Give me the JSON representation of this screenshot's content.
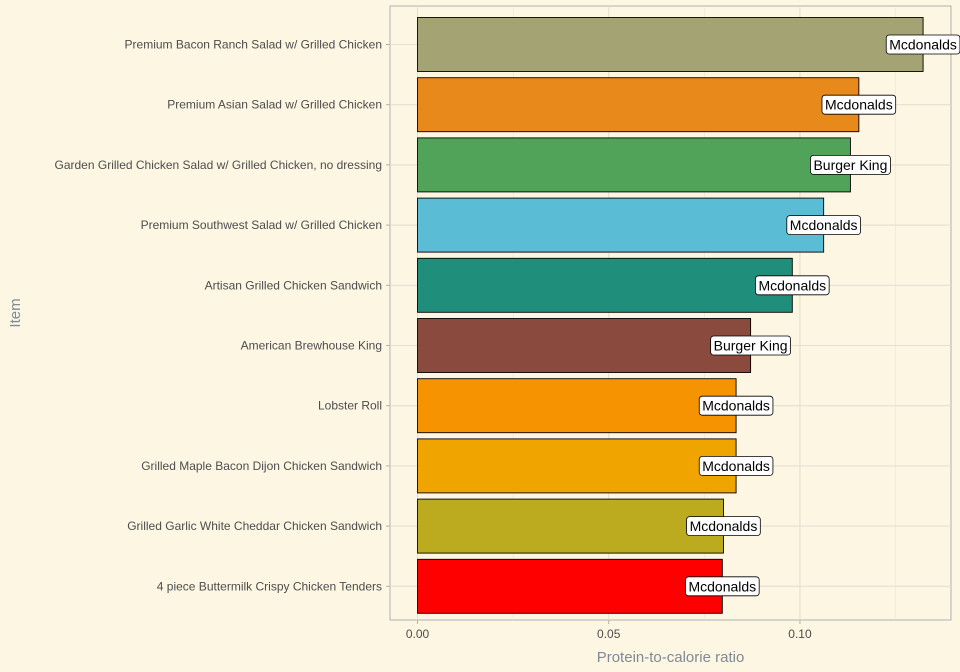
{
  "chart_data": {
    "type": "bar",
    "orientation": "horizontal",
    "xlabel": "Protein-to-calorie ratio",
    "ylabel": "Item",
    "xlim": [
      -0.0072,
      0.1395
    ],
    "x_ticks": [
      0,
      0.05,
      0.1
    ],
    "x_tick_labels": [
      "0.00",
      "0.05",
      "0.10"
    ],
    "grid": true,
    "legend": "none",
    "bars": [
      {
        "item": "Premium Bacon Ranch Salad w/ Grilled Chicken",
        "value": 0.1322,
        "restaurant": "Mcdonalds",
        "color": "#a3a374"
      },
      {
        "item": "Premium Asian Salad w/ Grilled Chicken",
        "value": 0.1154,
        "restaurant": "Mcdonalds",
        "color": "#e8891b"
      },
      {
        "item": "Garden Grilled Chicken Salad w/ Grilled Chicken, no dressing",
        "value": 0.1132,
        "restaurant": "Burger King",
        "color": "#52a35a"
      },
      {
        "item": "Premium Southwest Salad w/ Grilled Chicken",
        "value": 0.1062,
        "restaurant": "Mcdonalds",
        "color": "#5bbcd6"
      },
      {
        "item": "Artisan Grilled Chicken Sandwich",
        "value": 0.098,
        "restaurant": "Mcdonalds",
        "color": "#1f8f7c"
      },
      {
        "item": "American Brewhouse King",
        "value": 0.0871,
        "restaurant": "Burger King",
        "color": "#8b4a3e"
      },
      {
        "item": "Lobster Roll",
        "value": 0.0833,
        "restaurant": "Mcdonalds",
        "color": "#f59300"
      },
      {
        "item": "Grilled Maple Bacon Dijon Chicken Sandwich",
        "value": 0.0833,
        "restaurant": "Mcdonalds",
        "color": "#f0a400"
      },
      {
        "item": "Grilled Garlic White Cheddar Chicken Sandwich",
        "value": 0.08,
        "restaurant": "Mcdonalds",
        "color": "#bcab1f"
      },
      {
        "item": "4 piece Buttermilk Crispy Chicken Tenders",
        "value": 0.0797,
        "restaurant": "Mcdonalds",
        "color": "#ff0000"
      }
    ]
  }
}
